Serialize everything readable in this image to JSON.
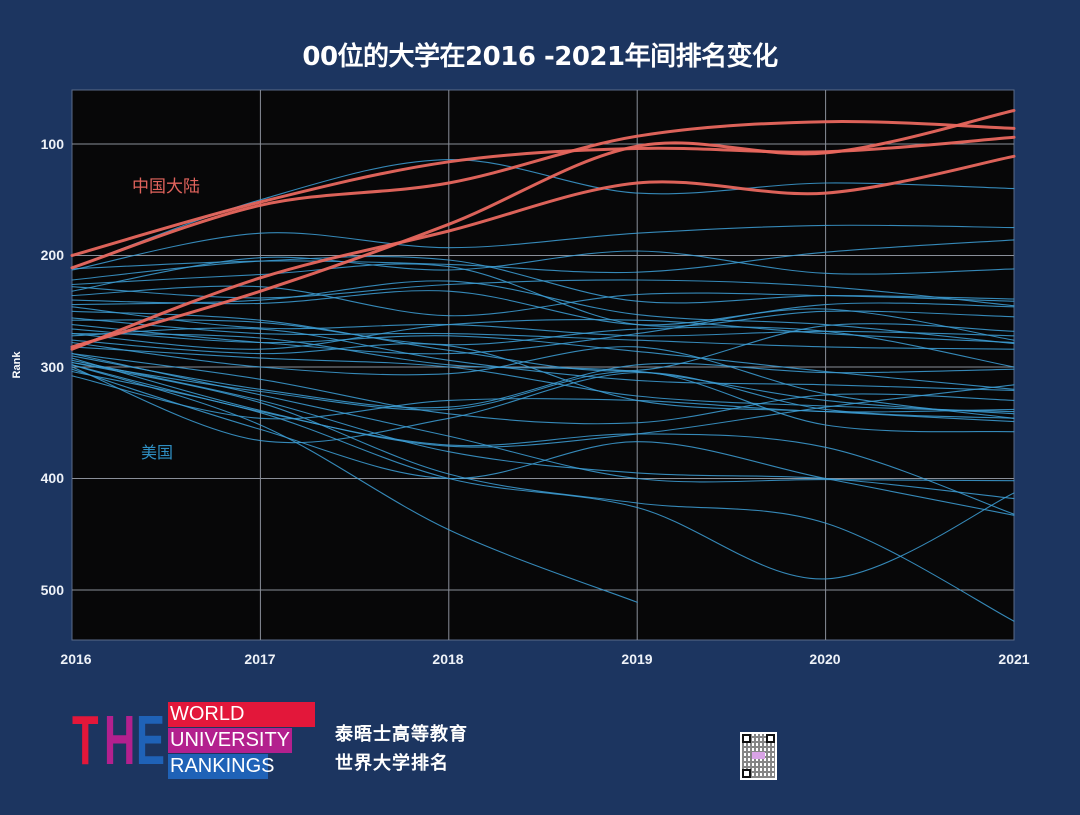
{
  "header": {
    "title": "00位的大学在2016 -2021年间排名变化"
  },
  "footer": {
    "logo": {
      "big_letters": [
        "T",
        "H",
        "E"
      ],
      "lines": [
        "WORLD",
        "UNIVERSITY",
        "RANKINGS"
      ],
      "colors": {
        "red": "#e3173a",
        "magenta": "#b3208e",
        "blue": "#1f62b7"
      }
    },
    "org_line1": "泰晤士高等教育",
    "org_line2": "世界大学排名",
    "qr_icon": "qr-code-icon"
  },
  "chart_data": {
    "type": "line",
    "title": "00位的大学在2016 -2021年间排名变化",
    "xlabel": "",
    "ylabel": "Rank",
    "x": [
      2016,
      2017,
      2018,
      2019,
      2020,
      2021
    ],
    "x_tick_labels": [
      "2016",
      "2017",
      "2018",
      "2019",
      "2020",
      "2021"
    ],
    "y_ticks": [
      100,
      200,
      300,
      400,
      500
    ],
    "y_tick_labels": [
      "100",
      "200",
      "300",
      "400",
      "500"
    ],
    "ylim": [
      552,
      52
    ],
    "y_inverted": true,
    "grid": true,
    "legend": "none (inline annotations)",
    "annotations": [
      {
        "text": "中国大陆",
        "color": "#e0635c"
      },
      {
        "text": "美国",
        "color": "#2f8fc3"
      }
    ],
    "colors": {
      "china": "#e8675e",
      "usa": "#3d9fd6",
      "plot_bg": "#070708",
      "page_bg": "#1c3560",
      "grid": "#8a8f99"
    },
    "series_groups": [
      {
        "name": "中国大陆",
        "color": "#e8675e",
        "series": [
          [
            200,
            152,
            116,
            104,
            107,
            94
          ],
          [
            211,
            155,
            135,
            93,
            80,
            86
          ],
          [
            282,
            232,
            172,
            102,
            108,
            70
          ],
          [
            284,
            220,
            178,
            135,
            144,
            111
          ]
        ]
      },
      {
        "name": "美国",
        "color": "#3d9fd6",
        "series": [
          [
            211,
            150,
            114,
            144,
            135,
            140
          ],
          [
            213,
            180,
            193,
            180,
            173,
            175
          ],
          [
            212,
            205,
            208,
            215,
            197,
            186
          ],
          [
            222,
            205,
            204,
            241,
            236,
            239
          ],
          [
            226,
            217,
            210,
            262,
            250,
            255
          ],
          [
            228,
            238,
            226,
            222,
            228,
            245
          ],
          [
            232,
            202,
            213,
            196,
            216,
            212
          ],
          [
            236,
            228,
            254,
            235,
            236,
            241
          ],
          [
            240,
            243,
            232,
            262,
            248,
            276
          ],
          [
            244,
            240,
            223,
            253,
            262,
            279
          ],
          [
            246,
            265,
            262,
            272,
            268,
            272
          ],
          [
            250,
            258,
            285,
            303,
            263,
            268
          ],
          [
            256,
            270,
            270,
            276,
            282,
            284
          ],
          [
            258,
            260,
            280,
            266,
            268,
            300
          ],
          [
            262,
            278,
            288,
            270,
            244,
            246
          ],
          [
            266,
            278,
            272,
            286,
            304,
            320
          ],
          [
            270,
            284,
            262,
            258,
            270,
            278
          ],
          [
            272,
            266,
            294,
            312,
            316,
            321
          ],
          [
            276,
            288,
            281,
            330,
            340,
            349
          ],
          [
            278,
            300,
            306,
            282,
            324,
            346
          ],
          [
            282,
            292,
            300,
            326,
            335,
            340
          ],
          [
            288,
            311,
            342,
            350,
            325,
            330
          ],
          [
            290,
            320,
            336,
            298,
            305,
            302
          ],
          [
            292,
            339,
            371,
            360,
            336,
            316
          ],
          [
            296,
            322,
            338,
            304,
            352,
            358
          ],
          [
            294,
            330,
            376,
            395,
            400,
            418
          ],
          [
            298,
            340,
            370,
            360,
            372,
            432
          ],
          [
            300,
            366,
            346,
            305,
            338,
            346
          ],
          [
            288,
            325,
            362,
            400,
            401,
            402
          ],
          [
            302,
            356,
            400,
            367,
            400,
            433
          ],
          [
            308,
            346,
            330,
            330,
            340,
            338
          ],
          [
            298,
            352,
            446,
            511,
            null,
            null
          ],
          [
            304,
            341,
            400,
            426,
            490,
            413
          ],
          [
            296,
            332,
            396,
            422,
            440,
            528
          ],
          [
            270,
            274,
            298,
            304,
            330,
            342
          ]
        ]
      }
    ]
  }
}
